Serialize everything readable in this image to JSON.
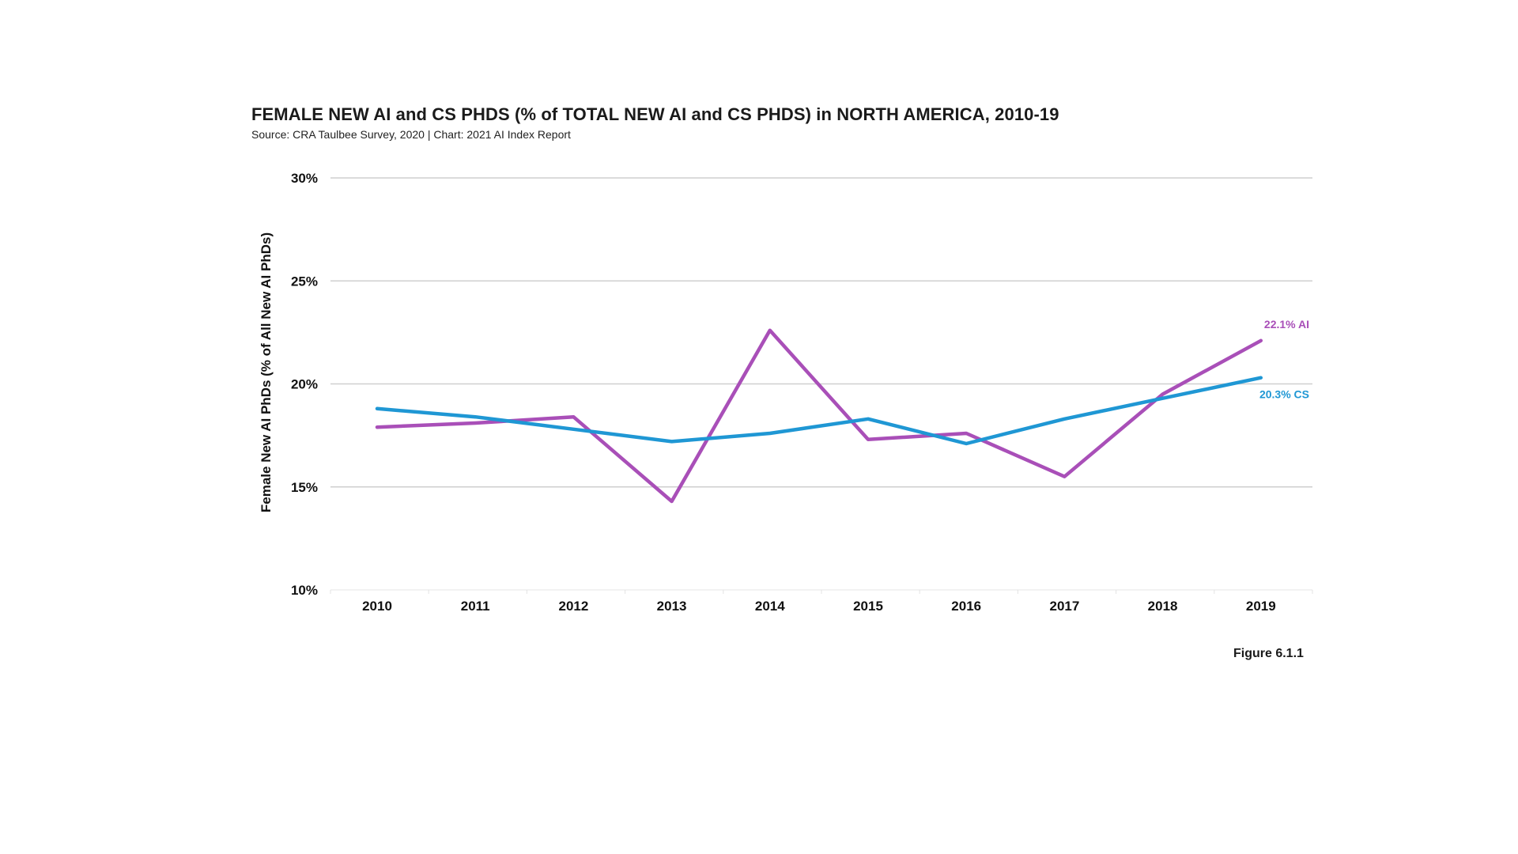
{
  "header": {
    "title": "FEMALE NEW AI and CS PHDS (% of TOTAL NEW AI and CS PHDS) in NORTH AMERICA, 2010-19",
    "subtitle": "Source: CRA Taulbee Survey, 2020 | Chart: 2021 AI Index Report"
  },
  "footer": {
    "figure_label": "Figure 6.1.1"
  },
  "chart_data": {
    "type": "line",
    "title": "FEMALE NEW AI and CS PHDS (% of TOTAL NEW AI and CS PHDS) in NORTH AMERICA, 2010-19",
    "subtitle": "Source: CRA Taulbee Survey, 2020 | Chart: 2021 AI Index Report",
    "xlabel": "",
    "ylabel": "Female New AI PhDs (% of All New AI PhDs)",
    "ylim": [
      10,
      30
    ],
    "yticks": [
      10,
      15,
      20,
      25,
      30
    ],
    "ytick_labels": [
      "10%",
      "15%",
      "20%",
      "25%",
      "30%"
    ],
    "categories": [
      "2010",
      "2011",
      "2012",
      "2013",
      "2014",
      "2015",
      "2016",
      "2017",
      "2018",
      "2019"
    ],
    "grid": true,
    "legend": "none",
    "series": [
      {
        "name": "AI",
        "color": "#a94fb8",
        "values": [
          17.9,
          18.1,
          18.4,
          14.3,
          22.6,
          17.3,
          17.6,
          15.5,
          19.5,
          22.1
        ],
        "end_label": "22.1% AI"
      },
      {
        "name": "CS",
        "color": "#1f97d4",
        "values": [
          18.8,
          18.4,
          17.8,
          17.2,
          17.6,
          18.3,
          17.1,
          18.3,
          19.3,
          20.3
        ],
        "end_label": "20.3% CS"
      }
    ]
  }
}
